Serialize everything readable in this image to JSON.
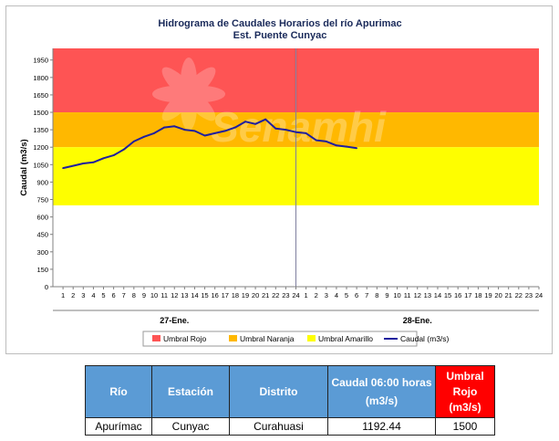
{
  "chart_data": {
    "type": "line",
    "title": "Hidrograma de Caudales Horarios del río Apurimac",
    "subtitle": "Est. Puente Cunyac",
    "ylabel": "Caudal  (m3/s)",
    "ylim": [
      0,
      2050
    ],
    "yticks": [
      0,
      150,
      300,
      450,
      600,
      750,
      900,
      1050,
      1200,
      1350,
      1500,
      1650,
      1800,
      1950
    ],
    "x_tick_labels": [
      "1",
      "2",
      "3",
      "4",
      "5",
      "6",
      "7",
      "8",
      "9",
      "10",
      "11",
      "12",
      "13",
      "14",
      "15",
      "16",
      "17",
      "18",
      "19",
      "20",
      "21",
      "22",
      "23",
      "24",
      "1",
      "2",
      "3",
      "4",
      "5",
      "6",
      "7",
      "8",
      "9",
      "10",
      "11",
      "12",
      "13",
      "14",
      "15",
      "16",
      "17",
      "18",
      "19",
      "20",
      "21",
      "22",
      "23",
      "24"
    ],
    "day_labels": [
      "27-Ene.",
      "28-Ene."
    ],
    "bands": [
      {
        "name": "Umbral Rojo",
        "from": 1500,
        "to": 2050,
        "color": "#fe5454"
      },
      {
        "name": "Umbral Naranja",
        "from": 1200,
        "to": 1500,
        "color": "#ffb800"
      },
      {
        "name": "Umbral Amarillo",
        "from": 700,
        "to": 1200,
        "color": "#fefe00"
      }
    ],
    "series": [
      {
        "name": "Caudal (m3/s)",
        "color": "#1f1f9e",
        "values": [
          1020,
          1040,
          1060,
          1070,
          1105,
          1130,
          1180,
          1250,
          1290,
          1320,
          1370,
          1380,
          1350,
          1340,
          1300,
          1320,
          1340,
          1370,
          1420,
          1400,
          1440,
          1360,
          1350,
          1330,
          1320,
          1260,
          1250,
          1215,
          1205,
          1192
        ]
      }
    ],
    "legend": {
      "position": "bottom",
      "items": [
        {
          "label": "Umbral Rojo",
          "color": "#fe5454",
          "kind": "patch"
        },
        {
          "label": "Umbral Naranja",
          "color": "#ffb800",
          "kind": "patch"
        },
        {
          "label": "Umbral Amarillo",
          "color": "#fefe00",
          "kind": "patch"
        },
        {
          "label": "Caudal (m3/s)",
          "color": "#1f1f9e",
          "kind": "line"
        }
      ]
    },
    "watermark": "Senamhi"
  },
  "table": {
    "headers": [
      {
        "lines": [
          "Río"
        ],
        "color": "#5b9bd5"
      },
      {
        "lines": [
          "Estación"
        ],
        "color": "#5b9bd5"
      },
      {
        "lines": [
          "Distrito"
        ],
        "color": "#5b9bd5"
      },
      {
        "lines": [
          "Caudal 06:00 horas",
          "(m3/s)"
        ],
        "color": "#5b9bd5"
      },
      {
        "lines": [
          "Umbral",
          "Rojo",
          "(m3/s)"
        ],
        "color": "#ff0000"
      }
    ],
    "row": [
      "Apurímac",
      "Cunyac",
      "Curahuasi",
      "1192.44",
      "1500"
    ]
  }
}
